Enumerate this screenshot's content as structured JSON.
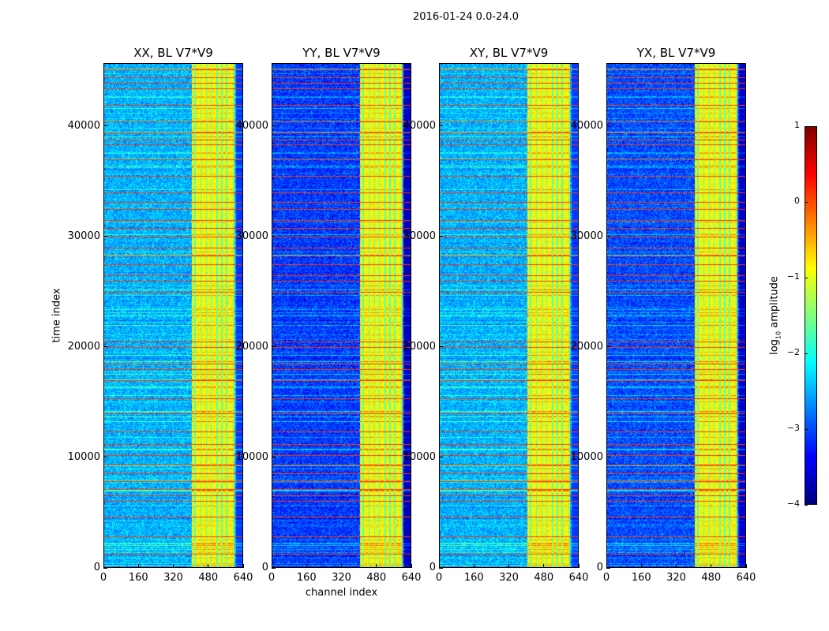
{
  "chart_data": {
    "type": "heatmap",
    "title": "2016-01-24 0.0-24.0",
    "panels": [
      {
        "title": "XX, BL V7*V9",
        "background_level": -2.5
      },
      {
        "title": "YY, BL V7*V9",
        "background_level": -3.1
      },
      {
        "title": "XY, BL V7*V9",
        "background_level": -2.5
      },
      {
        "title": "YX, BL V7*V9",
        "background_level": -3.0
      }
    ],
    "xlabel": "channel index",
    "ylabel": "time index",
    "xlim": [
      0,
      640
    ],
    "ylim": [
      0,
      45700
    ],
    "xticks": [
      "0",
      "160",
      "320",
      "480",
      "640"
    ],
    "xtick_values": [
      0,
      160,
      320,
      480,
      640
    ],
    "yticks": [
      "0",
      "10000",
      "20000",
      "30000",
      "40000"
    ],
    "ytick_values": [
      0,
      10000,
      20000,
      30000,
      40000
    ],
    "data_channel_max": 610,
    "bright_channel_range": [
      405,
      600
    ],
    "bright_channel_level": -0.9,
    "rfi_time_rows": [
      1200,
      2800,
      4600,
      6000,
      6500,
      7100,
      7800,
      8500,
      9300,
      10200,
      11200,
      12300,
      14000,
      15300,
      17000,
      18000,
      18500,
      20000,
      20500,
      25000,
      26000,
      26500,
      27500,
      28300,
      29000,
      30000,
      30800,
      31500,
      32500,
      33200,
      34000,
      35500,
      37000,
      38400,
      38800,
      39500,
      40500,
      42000,
      43500,
      44000,
      44500,
      45200
    ],
    "rfi_level": 0.1,
    "colorbar": {
      "label_prefix": "log",
      "label_sub": "10",
      "label_suffix": " amplitude",
      "range": [
        -4,
        1
      ],
      "ticks": [
        "1",
        "0",
        "−1",
        "−2",
        "−3",
        "−4"
      ],
      "tick_values": [
        1,
        0,
        -1,
        -2,
        -3,
        -4
      ],
      "colormap": "jet"
    }
  }
}
